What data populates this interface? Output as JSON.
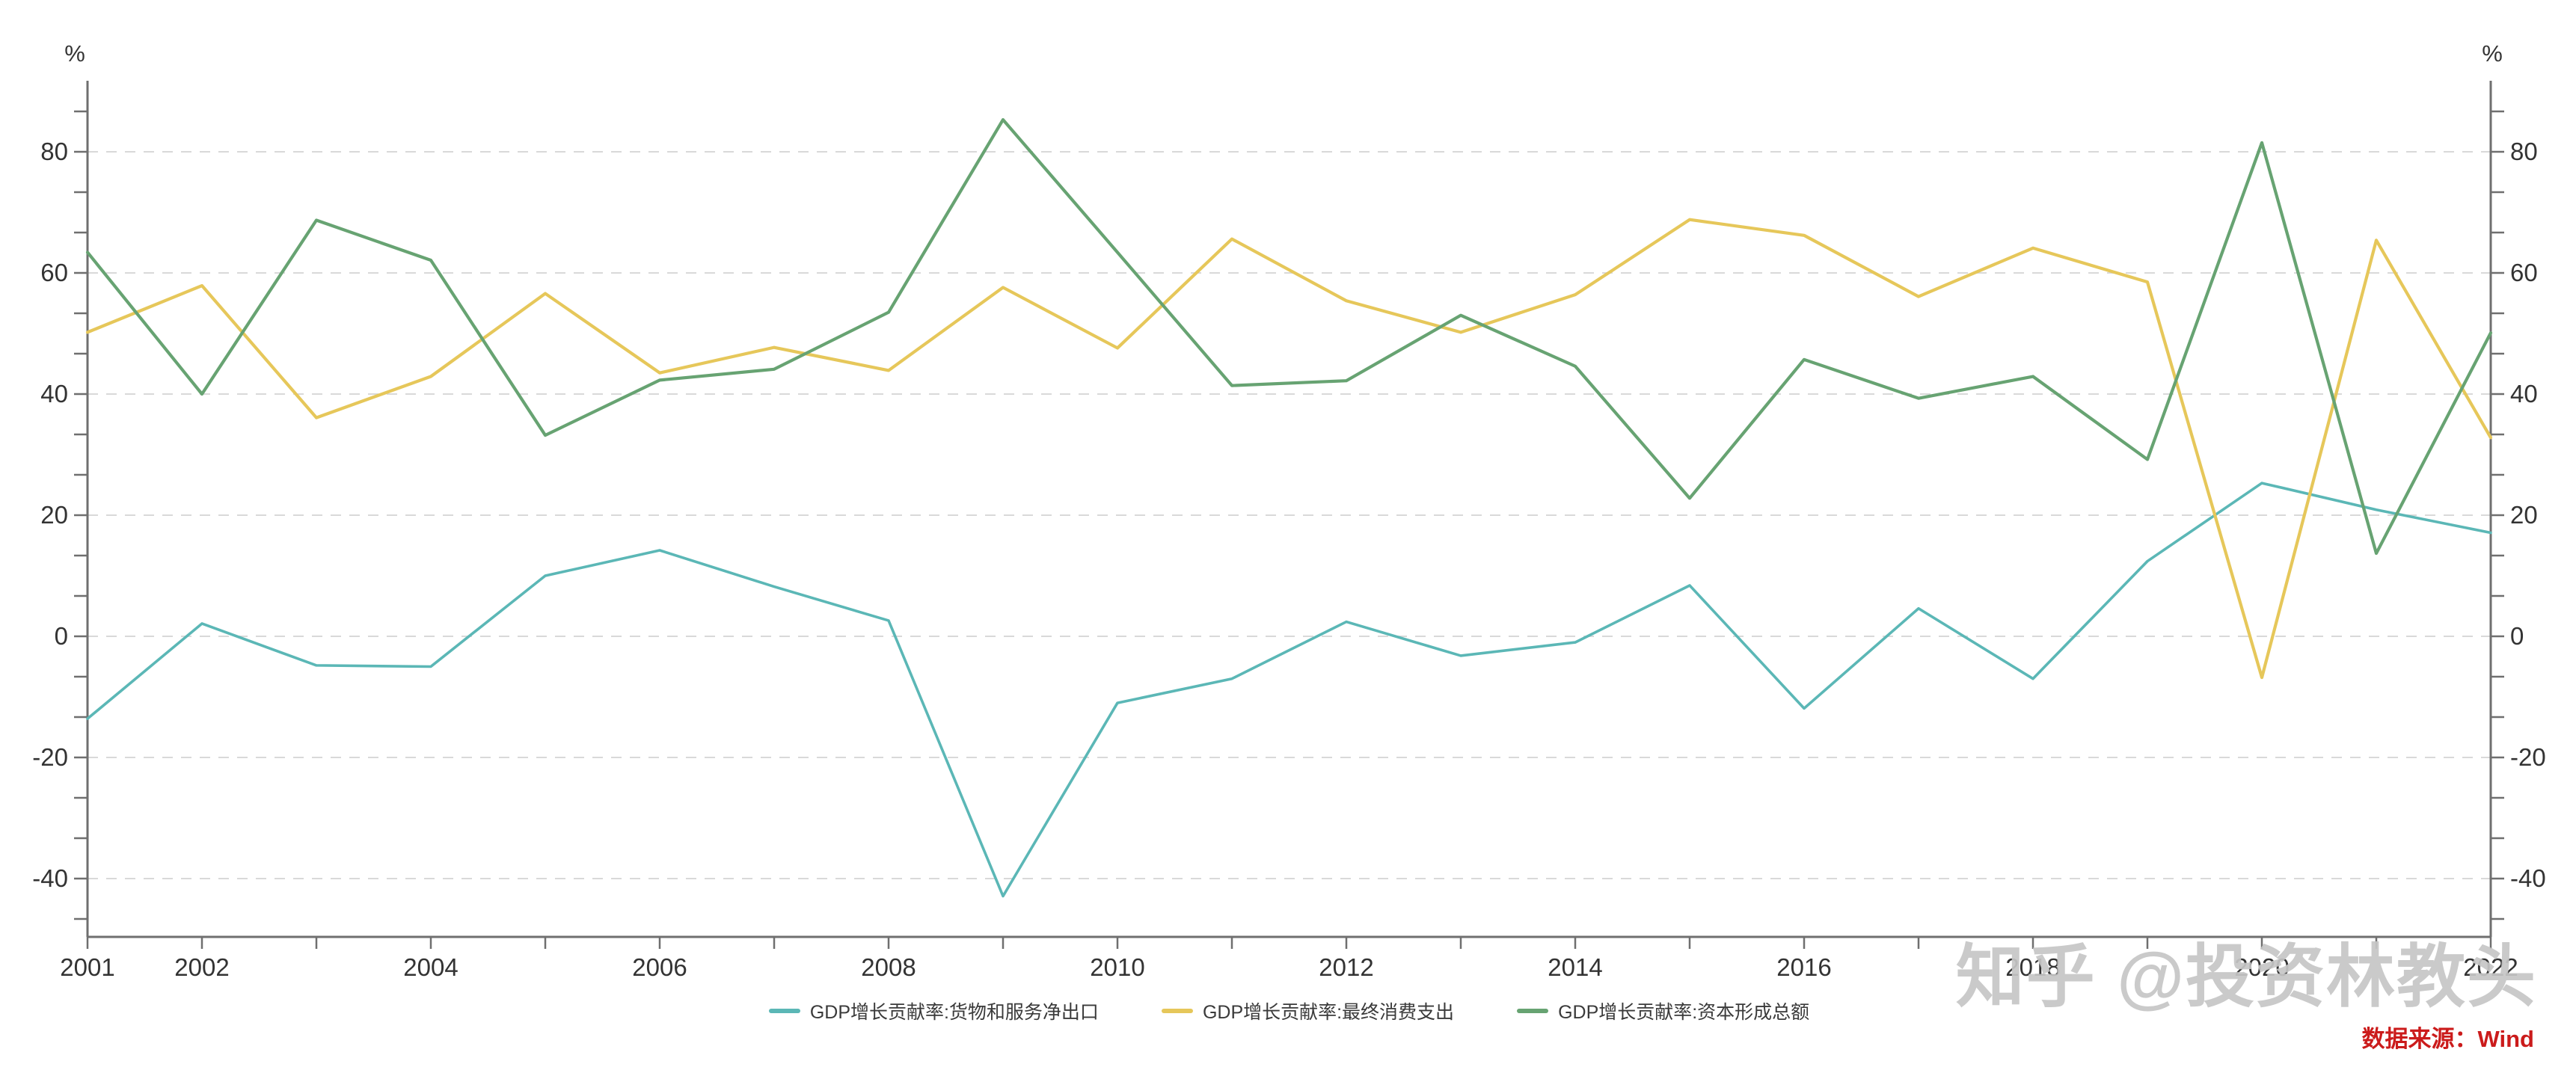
{
  "chart_data": {
    "type": "line",
    "title": "",
    "x": [
      2001,
      2002,
      2003,
      2004,
      2005,
      2006,
      2007,
      2008,
      2009,
      2010,
      2011,
      2012,
      2013,
      2014,
      2015,
      2016,
      2017,
      2018,
      2019,
      2020,
      2021,
      2022
    ],
    "series": [
      {
        "name": "GDP增长贡献率:货物和服务净出口",
        "color": "#5bb7b6",
        "values": [
          -13.6,
          2.1,
          -4.8,
          -5.0,
          10.0,
          14.2,
          8.2,
          2.6,
          -42.9,
          -11.0,
          -7.0,
          2.4,
          -3.2,
          -1.0,
          8.4,
          -11.9,
          4.6,
          -7.0,
          12.4,
          25.3,
          20.9,
          17.1
        ]
      },
      {
        "name": "GDP增长贡献率:最终消费支出",
        "color": "#e6c75a",
        "values": [
          50.2,
          57.9,
          36.1,
          42.9,
          56.6,
          43.5,
          47.7,
          43.9,
          57.6,
          47.6,
          65.6,
          55.4,
          50.2,
          56.4,
          68.8,
          66.2,
          56.1,
          64.1,
          58.5,
          -6.8,
          65.4,
          32.8
        ]
      },
      {
        "name": "GDP增长贡献率:资本形成总额",
        "color": "#67a372",
        "values": [
          63.4,
          40.0,
          68.7,
          62.1,
          33.2,
          42.3,
          44.1,
          53.5,
          85.3,
          63.4,
          41.4,
          42.2,
          53.0,
          44.6,
          22.8,
          45.7,
          39.3,
          42.9,
          29.2,
          81.5,
          13.7,
          50.1
        ]
      }
    ],
    "ylabel_left": "%",
    "ylabel_right": "%",
    "ylim": [
      -49.6,
      91.7
    ],
    "yticks": [
      -40,
      -20,
      0,
      20,
      40,
      60,
      80
    ],
    "x_tick_labels": [
      "2001",
      "2002",
      "2004",
      "2006",
      "2008",
      "2010",
      "2012",
      "2014",
      "2016",
      "2018",
      "2020",
      "2022"
    ],
    "grid": "horizontal-dashed",
    "legend_position": "bottom-center"
  },
  "watermark": "知乎 @投资林教头",
  "source_note": "数据来源：Wind",
  "colors": {
    "axis": "#6f6f6f",
    "grid": "#d9d9d9",
    "tick_label": "#333333",
    "legend_label": "#3a3a3a",
    "watermark": "#c5c5c5",
    "source": "#cb1b1b"
  }
}
